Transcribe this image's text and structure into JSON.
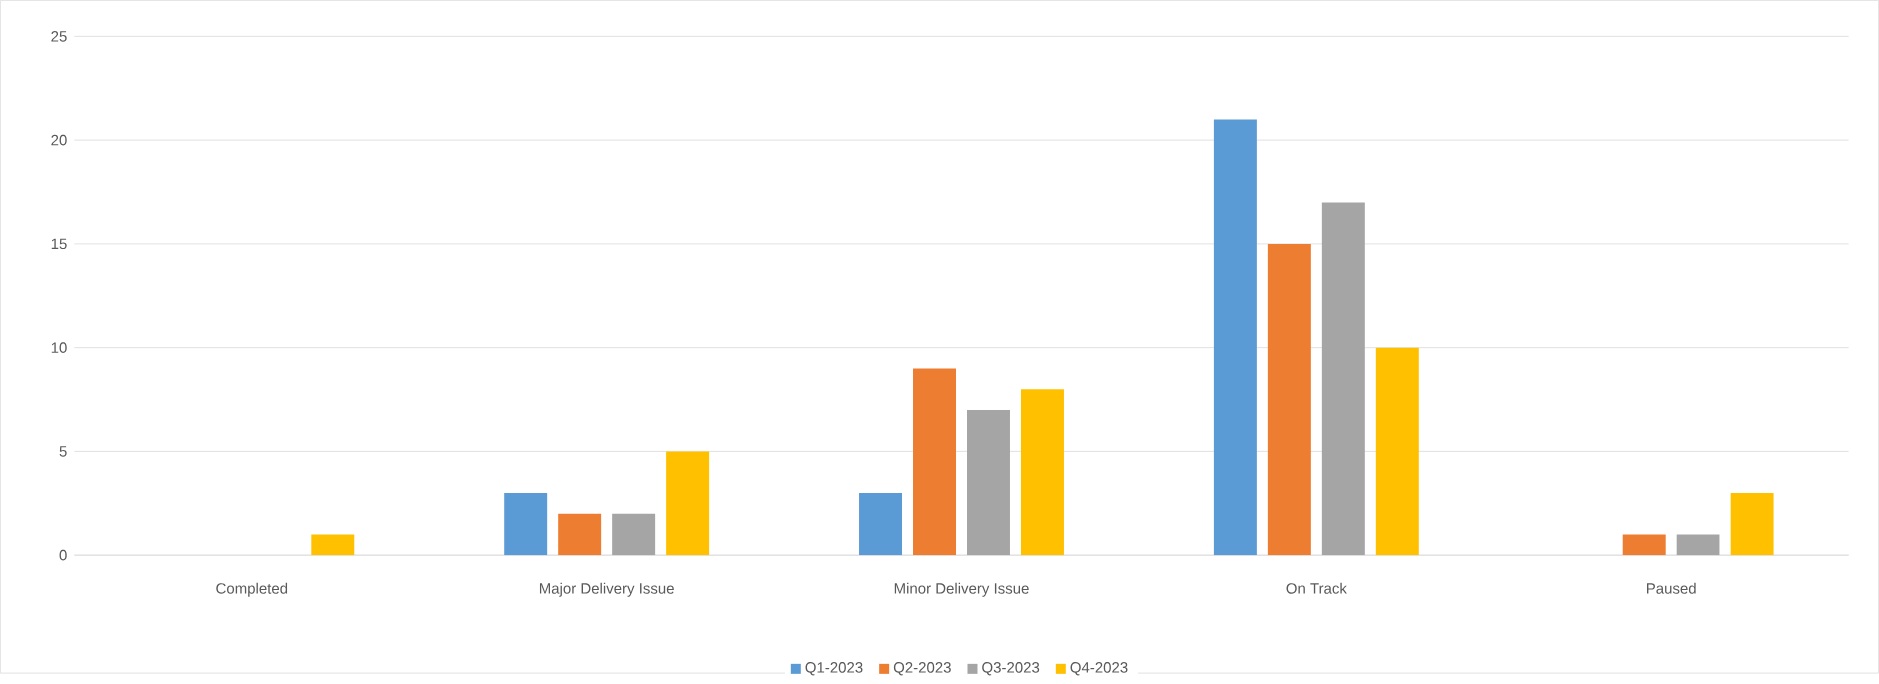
{
  "chart_data": {
    "type": "bar",
    "categories": [
      "Completed",
      "Major Delivery Issue",
      "Minor Delivery Issue",
      "On Track",
      "Paused"
    ],
    "series": [
      {
        "name": "Q1-2023",
        "color": "#5b9bd5",
        "values": [
          0,
          3,
          3,
          21,
          0
        ]
      },
      {
        "name": "Q2-2023",
        "color": "#ed7d31",
        "values": [
          0,
          2,
          9,
          15,
          1
        ]
      },
      {
        "name": "Q3-2023",
        "color": "#a5a5a5",
        "values": [
          0,
          2,
          7,
          17,
          1
        ]
      },
      {
        "name": "Q4-2023",
        "color": "#ffc000",
        "values": [
          1,
          5,
          8,
          10,
          3
        ]
      }
    ],
    "ylim": [
      0,
      25
    ],
    "yticks": [
      0,
      5,
      10,
      15,
      20,
      25
    ],
    "grid": "y",
    "legend": "bottom"
  }
}
